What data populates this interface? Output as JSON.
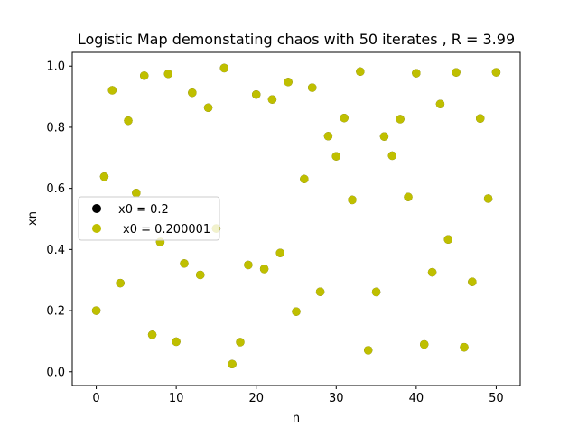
{
  "chart_data": {
    "type": "scatter",
    "title": "Logistic Map demonstating chaos with 50 iterates , R = 3.99",
    "xlabel": "n",
    "ylabel": "xn",
    "xlim": [
      -3,
      53
    ],
    "ylim": [
      -0.045,
      1.045
    ],
    "xticks": [
      0,
      10,
      20,
      30,
      40,
      50
    ],
    "yticks": [
      0.0,
      0.2,
      0.4,
      0.6,
      0.8,
      1.0
    ],
    "grid": false,
    "legend_position": "center-left",
    "series": [
      {
        "name": "x0 = 0.2",
        "color": "#000000",
        "x": [
          0,
          1,
          2,
          3,
          4,
          5,
          6,
          7,
          8,
          9,
          10,
          11,
          12,
          13,
          14,
          15,
          16,
          17,
          18,
          19,
          20,
          21,
          22,
          23,
          24,
          25,
          26,
          27,
          28,
          29,
          30,
          31,
          32,
          33,
          34,
          35,
          36,
          37,
          38,
          39,
          40,
          41,
          42,
          43,
          44,
          45,
          46,
          47,
          48,
          49,
          50
        ],
        "values": [
          0.2,
          0.6384,
          0.9211,
          0.29,
          0.8215,
          0.5851,
          0.9687,
          0.121,
          0.4243,
          0.9747,
          0.0985,
          0.3544,
          0.913,
          0.317,
          0.864,
          0.4688,
          0.9937,
          0.0249,
          0.097,
          0.3496,
          0.9071,
          0.3364,
          0.8907,
          0.3887,
          0.948,
          0.1967,
          0.6306,
          0.9295,
          0.2617,
          0.7709,
          0.7048,
          0.8302,
          0.5624,
          0.9821,
          0.0704,
          0.2611,
          0.7698,
          0.707,
          0.8266,
          0.5718,
          0.977,
          0.0896,
          0.3255,
          0.8762,
          0.4328,
          0.9795,
          0.0802,
          0.2943,
          0.8286,
          0.5666,
          0.9798
        ]
      },
      {
        "name": "x0 = 0.200001",
        "color": "#bfbf00",
        "x": [
          0,
          1,
          2,
          3,
          4,
          5,
          6,
          7,
          8,
          9,
          10,
          11,
          12,
          13,
          14,
          15,
          16,
          17,
          18,
          19,
          20,
          21,
          22,
          23,
          24,
          25,
          26,
          27,
          28,
          29,
          30,
          31,
          32,
          33,
          34,
          35,
          36,
          37,
          38,
          39,
          40,
          41,
          42,
          43,
          44,
          45,
          46,
          47,
          48,
          49,
          50
        ],
        "values": [
          0.2,
          0.6384,
          0.9211,
          0.29,
          0.8215,
          0.5851,
          0.9687,
          0.121,
          0.4243,
          0.9747,
          0.0985,
          0.3544,
          0.913,
          0.317,
          0.864,
          0.4688,
          0.9937,
          0.0249,
          0.097,
          0.3496,
          0.9071,
          0.3364,
          0.8907,
          0.3887,
          0.948,
          0.1967,
          0.6306,
          0.9295,
          0.2617,
          0.7709,
          0.7048,
          0.8302,
          0.5624,
          0.9821,
          0.0704,
          0.2611,
          0.7698,
          0.707,
          0.8266,
          0.5718,
          0.977,
          0.0896,
          0.3255,
          0.8762,
          0.4328,
          0.9795,
          0.0802,
          0.2943,
          0.8286,
          0.5666,
          0.9798
        ]
      }
    ]
  }
}
